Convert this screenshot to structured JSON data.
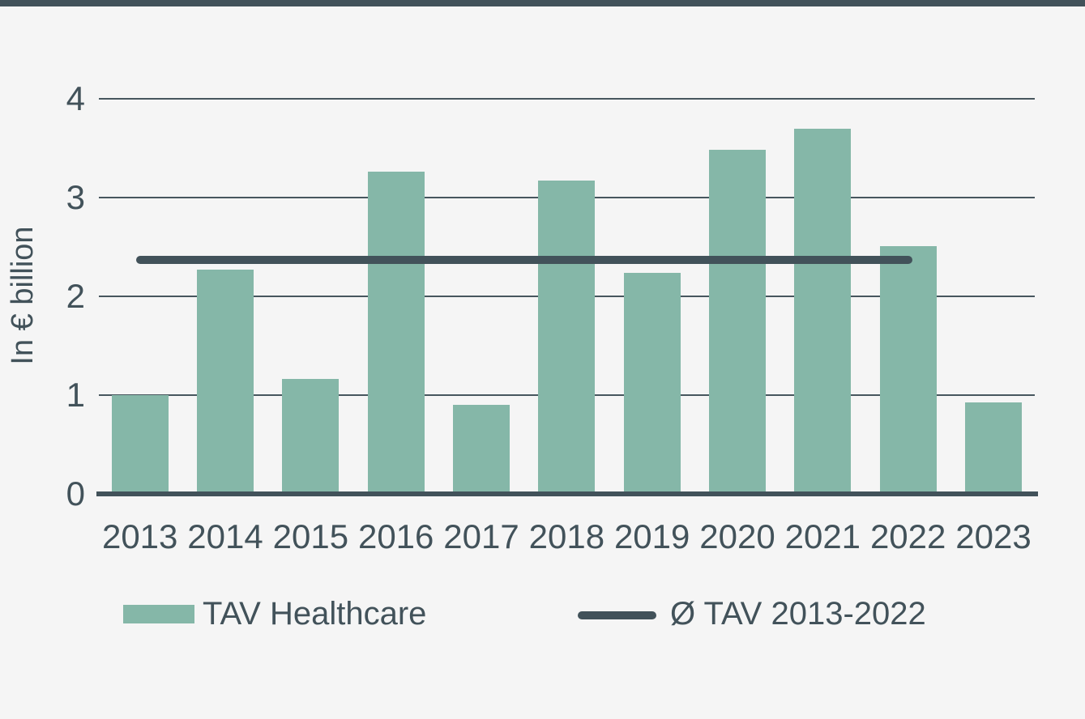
{
  "window": {
    "top_border_color": "#42525A"
  },
  "colors": {
    "background": "#F5F5F5",
    "bar": "#85B7A8",
    "dark": "#42525A",
    "gridline": "#47565E"
  },
  "legend": {
    "items": [
      {
        "label": "TAV Healthcare",
        "swatch": "bar-swatch",
        "color": "#85B7A8"
      },
      {
        "label": "Ø TAV 2013-2022",
        "swatch": "line-swatch",
        "color": "#42525A"
      }
    ]
  },
  "chart_data": {
    "type": "bar",
    "categories": [
      "2013",
      "2014",
      "2015",
      "2016",
      "2017",
      "2018",
      "2019",
      "2020",
      "2021",
      "2022",
      "2023"
    ],
    "series": [
      {
        "name": "TAV Healthcare",
        "type": "bar",
        "values": [
          1.0,
          2.27,
          1.16,
          3.26,
          0.9,
          3.17,
          2.24,
          3.48,
          3.7,
          2.51,
          0.93
        ]
      },
      {
        "name": "Ø TAV 2013-2022",
        "type": "average-line",
        "value": 2.37,
        "span": [
          "2013",
          "2022"
        ]
      }
    ],
    "title": "",
    "xlabel": "",
    "ylabel": "In € billion",
    "ylim": [
      0,
      4
    ],
    "yticks": [
      0,
      1,
      2,
      3,
      4
    ],
    "grid": "horizontal",
    "legend_position": "bottom"
  }
}
